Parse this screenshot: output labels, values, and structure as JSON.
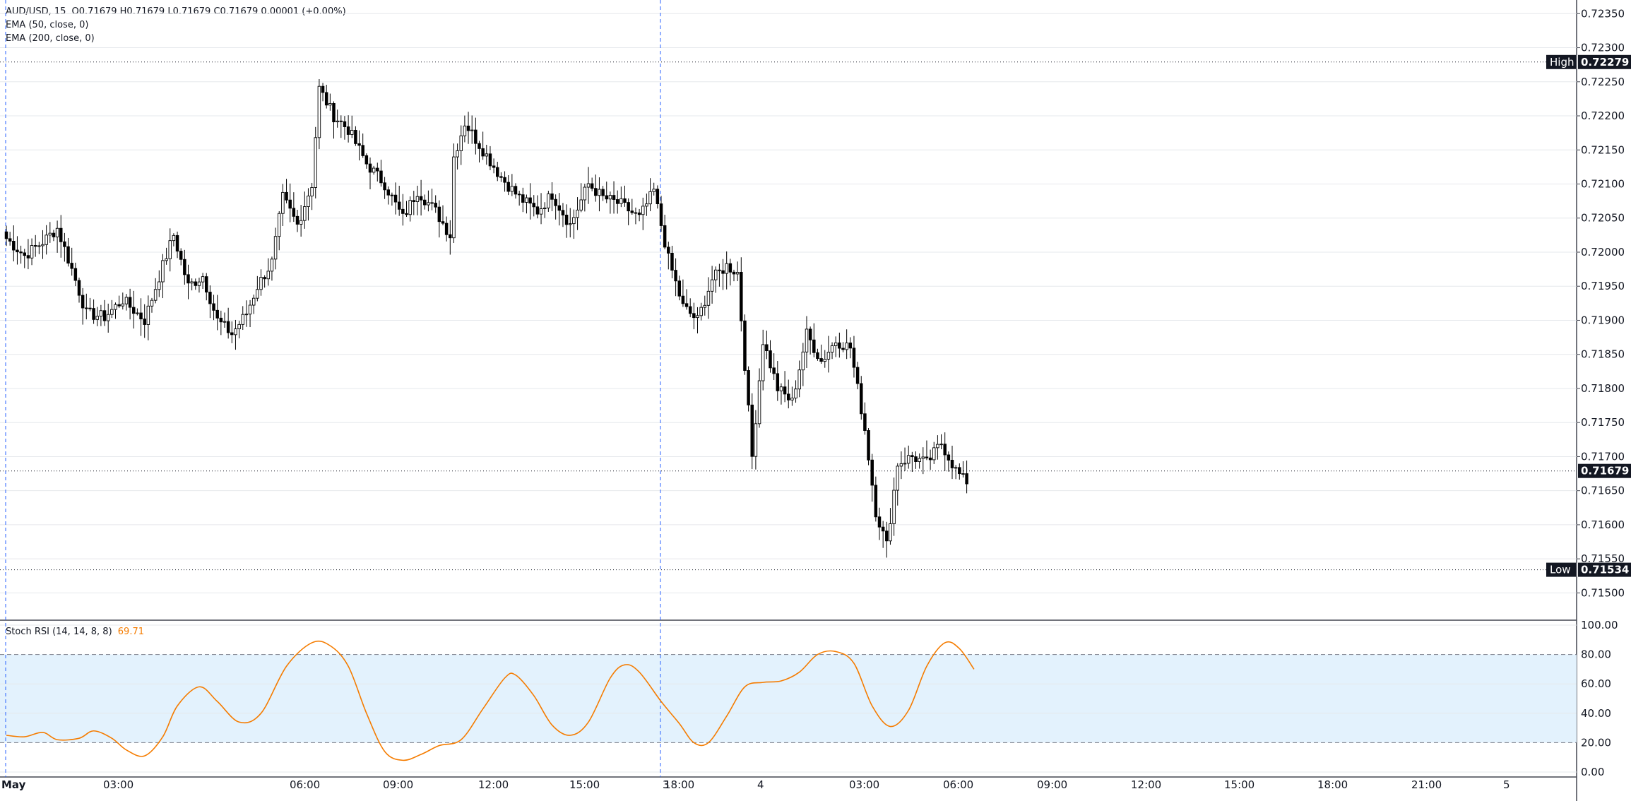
{
  "legend": {
    "symbol_line": "AUD/USD, 15",
    "ohlc": "O0.71679 H0.71679 L0.71679 C0.71679 0.00001 (+0.00%)",
    "ema50": "EMA (50, close, 0)",
    "ema200": "EMA (200, close, 0)",
    "stoch_label": "Stoch RSI (14, 14, 8, 8)",
    "stoch_value": "69.71"
  },
  "colors": {
    "up": "#ffffff",
    "down": "#000000",
    "wick": "#000000",
    "grid": "#e6e8ec",
    "rsi_line": "#f57c00",
    "rsi_band": "#e3f2fd",
    "badge": "#131722",
    "session_line": "#2962ff"
  },
  "badges": {
    "high_label": "High",
    "high_value": "0.72279",
    "current_value": "0.71679",
    "low_label": "Low",
    "low_value": "0.71534"
  },
  "chart_data": [
    {
      "type": "candlestick",
      "symbol": "AUD/USD",
      "interval": "15",
      "ylim": [
        0.7146,
        0.7237
      ],
      "y_ticks": [
        "0.72350",
        "0.72300",
        "0.72250",
        "0.72200",
        "0.72150",
        "0.72100",
        "0.72050",
        "0.72000",
        "0.71950",
        "0.71900",
        "0.71850",
        "0.71800",
        "0.71750",
        "0.71700",
        "0.71650",
        "0.71600",
        "0.71550",
        "0.71500"
      ],
      "x_ticks": [
        "May",
        "03:00",
        "06:00",
        "09:00",
        "12:00",
        "15:00",
        "18:00",
        "3",
        "4",
        "03:00",
        "06:00",
        "09:00",
        "12:00",
        "15:00",
        "18:00",
        "21:00",
        "5"
      ],
      "high": 0.72279,
      "low": 0.71534,
      "last": 0.71679,
      "anchors": [
        [
          0,
          0.7202
        ],
        [
          5,
          0.71995
        ],
        [
          10,
          0.72015
        ],
        [
          14,
          0.72035
        ],
        [
          18,
          0.71975
        ],
        [
          22,
          0.7191
        ],
        [
          27,
          0.71905
        ],
        [
          32,
          0.7193
        ],
        [
          38,
          0.719
        ],
        [
          43,
          0.7198
        ],
        [
          46,
          0.72025
        ],
        [
          50,
          0.7195
        ],
        [
          54,
          0.71965
        ],
        [
          58,
          0.719
        ],
        [
          62,
          0.7188
        ],
        [
          66,
          0.7191
        ],
        [
          69,
          0.7195
        ],
        [
          73,
          0.71985
        ],
        [
          76,
          0.7208
        ],
        [
          80,
          0.7204
        ],
        [
          84,
          0.721
        ],
        [
          86,
          0.7224
        ],
        [
          90,
          0.722
        ],
        [
          94,
          0.7218
        ],
        [
          99,
          0.7213
        ],
        [
          104,
          0.721
        ],
        [
          109,
          0.7205
        ],
        [
          113,
          0.7209
        ],
        [
          118,
          0.7206
        ],
        [
          122,
          0.72025
        ],
        [
          123,
          0.7214
        ],
        [
          126,
          0.7219
        ],
        [
          131,
          0.7215
        ],
        [
          136,
          0.7211
        ],
        [
          141,
          0.7208
        ],
        [
          146,
          0.7206
        ],
        [
          150,
          0.72085
        ],
        [
          155,
          0.7204
        ],
        [
          160,
          0.721
        ],
        [
          164,
          0.7208
        ],
        [
          169,
          0.7207
        ],
        [
          174,
          0.7205
        ],
        [
          178,
          0.7209
        ],
        [
          182,
          0.7199
        ],
        [
          186,
          0.7192
        ],
        [
          190,
          0.719
        ],
        [
          194,
          0.7196
        ],
        [
          198,
          0.7198
        ],
        [
          201,
          0.7197
        ],
        [
          205,
          0.717
        ],
        [
          208,
          0.7187
        ],
        [
          212,
          0.718
        ],
        [
          216,
          0.7178
        ],
        [
          220,
          0.7188
        ],
        [
          224,
          0.7184
        ],
        [
          228,
          0.7187
        ],
        [
          232,
          0.7186
        ],
        [
          236,
          0.7174
        ],
        [
          239,
          0.7162
        ],
        [
          242,
          0.7157
        ],
        [
          245,
          0.7169
        ],
        [
          249,
          0.717
        ],
        [
          253,
          0.7169
        ],
        [
          257,
          0.7172
        ],
        [
          261,
          0.7168
        ],
        [
          264,
          0.7166
        ]
      ]
    },
    {
      "type": "line",
      "name": "Stoch RSI (14, 14, 8, 8)",
      "ylim": [
        0,
        100
      ],
      "y_ticks": [
        "100.00",
        "80.00",
        "60.00",
        "40.00",
        "20.00",
        "0.00"
      ],
      "band": [
        20,
        80
      ],
      "last": 69.71,
      "points": [
        [
          0,
          25
        ],
        [
          5,
          24
        ],
        [
          10,
          27
        ],
        [
          14,
          22
        ],
        [
          20,
          23
        ],
        [
          24,
          28
        ],
        [
          29,
          23
        ],
        [
          33,
          15
        ],
        [
          38,
          11
        ],
        [
          43,
          24
        ],
        [
          47,
          45
        ],
        [
          53,
          58
        ],
        [
          58,
          48
        ],
        [
          64,
          34
        ],
        [
          70,
          40
        ],
        [
          77,
          72
        ],
        [
          84,
          88
        ],
        [
          89,
          86
        ],
        [
          94,
          72
        ],
        [
          99,
          40
        ],
        [
          104,
          14
        ],
        [
          109,
          8
        ],
        [
          114,
          12
        ],
        [
          119,
          18
        ],
        [
          125,
          22
        ],
        [
          131,
          43
        ],
        [
          137,
          64
        ],
        [
          140,
          66
        ],
        [
          145,
          52
        ],
        [
          150,
          32
        ],
        [
          155,
          25
        ],
        [
          160,
          34
        ],
        [
          166,
          64
        ],
        [
          170,
          73
        ],
        [
          174,
          68
        ],
        [
          180,
          48
        ],
        [
          185,
          33
        ],
        [
          189,
          20
        ],
        [
          193,
          20
        ],
        [
          198,
          38
        ],
        [
          203,
          58
        ],
        [
          208,
          61
        ],
        [
          213,
          62
        ],
        [
          218,
          68
        ],
        [
          223,
          80
        ],
        [
          228,
          82
        ],
        [
          233,
          74
        ],
        [
          238,
          45
        ],
        [
          243,
          31
        ],
        [
          248,
          42
        ],
        [
          253,
          72
        ],
        [
          258,
          88
        ],
        [
          262,
          84
        ],
        [
          266,
          70
        ]
      ]
    }
  ]
}
